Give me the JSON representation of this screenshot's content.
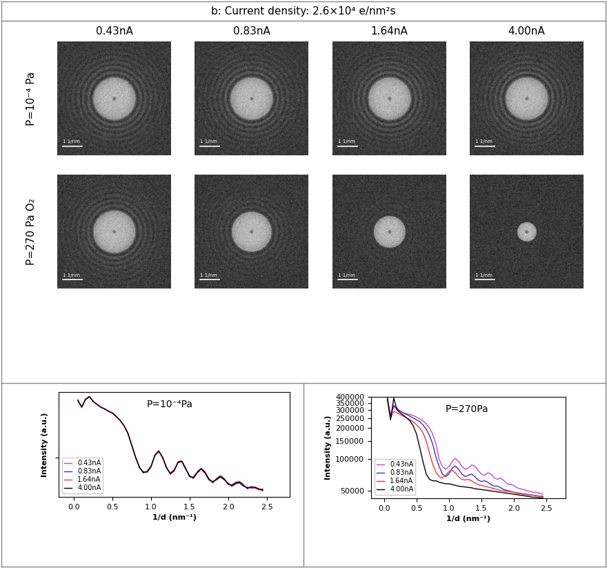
{
  "header": {
    "title": "b: Current density: 2.6×10⁴ e/nm²s"
  },
  "columns": [
    "0.43nA",
    "0.83nA",
    "1.64nA",
    "4.00nA"
  ],
  "rows": [
    "P=10⁻⁴ Pa",
    "P=270 Pa O₂"
  ],
  "scale_bar": "1 1/nm",
  "chart_data": [
    {
      "type": "line",
      "annotation": "P=10⁻⁴Pa",
      "x_label": "1/d (nm⁻¹)",
      "y_label": "Intensity (a.u.)",
      "log": "y",
      "tick_labels": "x",
      "legend": "lower left",
      "xlim": [
        -0.2,
        2.8
      ],
      "xticks": [
        {
          "value": 0,
          "label": "0.0"
        },
        0.5,
        {
          "value": 1,
          "label": "1.0"
        },
        1.5,
        {
          "value": 2,
          "label": "2.0"
        },
        2.5
      ],
      "ylim": [
        42000,
        420000
      ],
      "yticks": [
        100000
      ],
      "x": [
        0.05,
        0.1,
        0.15,
        0.2,
        0.25,
        0.3,
        0.35,
        0.4,
        0.45,
        0.5,
        0.55,
        0.6,
        0.65,
        0.7,
        0.75,
        0.8,
        0.85,
        0.9,
        0.95,
        1.0,
        1.05,
        1.1,
        1.15,
        1.2,
        1.25,
        1.3,
        1.35,
        1.4,
        1.45,
        1.5,
        1.55,
        1.6,
        1.65,
        1.7,
        1.75,
        1.8,
        1.85,
        1.9,
        1.95,
        2.0,
        2.05,
        2.1,
        2.15,
        2.2,
        2.25,
        2.3,
        2.35,
        2.4,
        2.45
      ],
      "series": [
        {
          "name": "0.43nA",
          "color": "#cc44cc",
          "values": [
            350000,
            300000,
            360000,
            380000,
            340000,
            320000,
            300000,
            290000,
            275000,
            265000,
            245000,
            225000,
            200000,
            170000,
            130000,
            100000,
            80000,
            72000,
            73000,
            82000,
            105000,
            115000,
            100000,
            80000,
            70000,
            75000,
            90000,
            92000,
            78000,
            66000,
            64000,
            72000,
            78000,
            72000,
            62000,
            58000,
            62000,
            66000,
            62000,
            56000,
            54000,
            57000,
            58000,
            54000,
            51000,
            52000,
            52000,
            50000,
            49000
          ]
        },
        {
          "name": "0.83nA",
          "color": "#3333cc",
          "values": [
            345000,
            305000,
            355000,
            378000,
            342000,
            318000,
            302000,
            288000,
            276000,
            263000,
            246000,
            224000,
            199000,
            168000,
            131000,
            99000,
            81000,
            71000,
            74000,
            83000,
            104000,
            114000,
            101000,
            79000,
            71000,
            76000,
            89000,
            91000,
            77000,
            67000,
            63000,
            71000,
            77000,
            71000,
            61000,
            59000,
            61000,
            65000,
            61000,
            57000,
            53000,
            56000,
            57000,
            53000,
            52000,
            51000,
            51000,
            50000,
            48000
          ]
        },
        {
          "name": "1.64nA",
          "color": "#ff3333",
          "values": [
            355000,
            298000,
            362000,
            382000,
            338000,
            321000,
            299000,
            291000,
            274000,
            266000,
            244000,
            226000,
            201000,
            171000,
            129000,
            101000,
            79000,
            73000,
            72000,
            81000,
            106000,
            116000,
            99000,
            81000,
            69000,
            74000,
            91000,
            93000,
            79000,
            65000,
            65000,
            73000,
            79000,
            73000,
            63000,
            57000,
            63000,
            67000,
            63000,
            55000,
            55000,
            58000,
            59000,
            55000,
            50000,
            53000,
            51000,
            49000,
            50000
          ]
        },
        {
          "name": "4.00nA",
          "color": "#000000",
          "values": [
            348000,
            302000,
            358000,
            379000,
            341000,
            319000,
            301000,
            289000,
            275000,
            264000,
            245000,
            225000,
            200000,
            169000,
            130000,
            100000,
            80000,
            72000,
            73000,
            82000,
            105000,
            115000,
            100000,
            80000,
            70000,
            75000,
            90000,
            92000,
            78000,
            66000,
            64000,
            72000,
            78000,
            72000,
            62000,
            58000,
            62000,
            66000,
            62000,
            56000,
            54000,
            57000,
            58000,
            54000,
            51000,
            52000,
            52000,
            50000,
            49000
          ]
        }
      ]
    },
    {
      "type": "line",
      "annotation": "P=270Pa",
      "x_label": "1/d (nm⁻¹)",
      "y_label": "Intensity (a.u.)",
      "log": "y",
      "legend": "lower left",
      "xlim": [
        -0.2,
        2.8
      ],
      "xticks": [
        {
          "value": 0,
          "label": "0.0"
        },
        0.5,
        {
          "value": 1,
          "label": "1.0"
        },
        1.5,
        {
          "value": 2,
          "label": "2.0"
        },
        2.5
      ],
      "ylim": [
        42000,
        400000
      ],
      "yticks": [
        50000,
        100000,
        150000,
        200000,
        250000,
        300000,
        350000,
        400000
      ],
      "x": [
        0.05,
        0.1,
        0.15,
        0.2,
        0.25,
        0.3,
        0.35,
        0.4,
        0.45,
        0.5,
        0.55,
        0.6,
        0.65,
        0.7,
        0.75,
        0.8,
        0.85,
        0.9,
        0.95,
        1.0,
        1.05,
        1.1,
        1.15,
        1.2,
        1.25,
        1.3,
        1.35,
        1.4,
        1.45,
        1.5,
        1.55,
        1.6,
        1.65,
        1.7,
        1.75,
        1.8,
        1.85,
        1.9,
        1.95,
        2.0,
        2.05,
        2.1,
        2.15,
        2.2,
        2.25,
        2.3,
        2.35,
        2.4,
        2.45
      ],
      "series": [
        {
          "name": "0.43nA",
          "color": "#cc44cc",
          "values": [
            380000,
            270000,
            320000,
            300000,
            290000,
            280000,
            275000,
            270000,
            265000,
            255000,
            245000,
            235000,
            220000,
            200000,
            175000,
            140000,
            100000,
            85000,
            80000,
            85000,
            95000,
            102000,
            95000,
            85000,
            80000,
            82000,
            88000,
            86000,
            78000,
            72000,
            70000,
            74000,
            72000,
            66000,
            64000,
            66000,
            62000,
            58000,
            57000,
            56000,
            53000,
            52000,
            51000,
            50000,
            49000,
            48000,
            48000,
            47000,
            46000
          ]
        },
        {
          "name": "0.83nA",
          "color": "#3333cc",
          "values": [
            380000,
            260000,
            330000,
            310000,
            290000,
            280000,
            270000,
            260000,
            250000,
            240000,
            230000,
            215000,
            195000,
            170000,
            140000,
            105000,
            85000,
            72000,
            68000,
            72000,
            82000,
            86000,
            80000,
            72000,
            68000,
            70000,
            72000,
            68000,
            63000,
            61000,
            62000,
            60000,
            57000,
            55000,
            55000,
            53000,
            51000,
            50000,
            49000,
            48000,
            47000,
            46500,
            46000,
            45500,
            45000,
            45000,
            44500,
            44000,
            44000
          ]
        },
        {
          "name": "1.64nA",
          "color": "#ff3333",
          "values": [
            370000,
            250000,
            290000,
            280000,
            270000,
            260000,
            250000,
            240000,
            230000,
            215000,
            200000,
            180000,
            150000,
            115000,
            90000,
            75000,
            68000,
            66000,
            70000,
            76000,
            78000,
            74000,
            68000,
            64000,
            63000,
            64000,
            62000,
            59000,
            57000,
            56000,
            55000,
            54000,
            53000,
            52000,
            51000,
            50000,
            49500,
            49000,
            48500,
            48000,
            47500,
            47000,
            46500,
            46000,
            45500,
            45000,
            44500,
            44000,
            43500
          ]
        },
        {
          "name": "4.00nA",
          "color": "#000000",
          "values": [
            400000,
            240000,
            390000,
            300000,
            280000,
            265000,
            250000,
            235000,
            210000,
            175000,
            130000,
            95000,
            72000,
            64000,
            62000,
            62000,
            60000,
            59000,
            58000,
            58000,
            57000,
            56000,
            55000,
            54500,
            54000,
            53500,
            53000,
            52000,
            51500,
            51000,
            50500,
            50000,
            49500,
            49000,
            48500,
            48000,
            47500,
            47000,
            46500,
            46000,
            45500,
            45000,
            44500,
            44000,
            43500,
            43000,
            43000,
            42500,
            42500
          ]
        }
      ]
    }
  ]
}
